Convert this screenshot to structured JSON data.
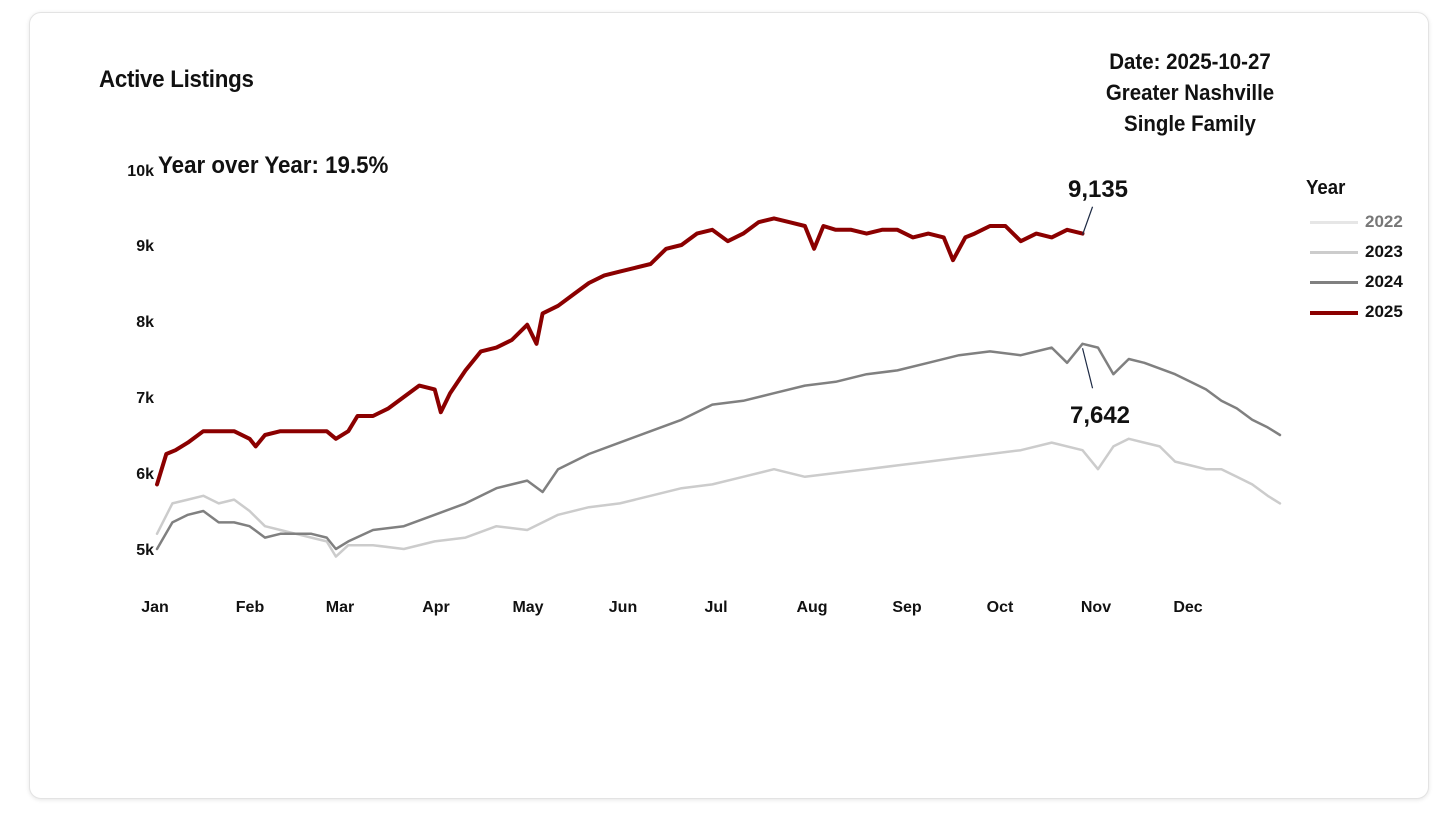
{
  "header": {
    "title": "Active Listings",
    "date_line": "Date: 2025-10-27",
    "region": "Greater Nashville",
    "property_type": "Single Family",
    "yoy": "Year over Year: 19.5%"
  },
  "legend": {
    "title": "Year",
    "items": [
      {
        "label": "2022",
        "color": "#e6e6e6",
        "label_color": "#777777"
      },
      {
        "label": "2023",
        "color": "#cccccc",
        "label_color": "#111111"
      },
      {
        "label": "2024",
        "color": "#808080",
        "label_color": "#111111"
      },
      {
        "label": "2025",
        "color": "#8b0000",
        "label_color": "#111111"
      }
    ]
  },
  "chart_data": {
    "type": "line",
    "title": "Active Listings",
    "x_axis": {
      "months": [
        "Jan",
        "Feb",
        "Mar",
        "Apr",
        "May",
        "Jun",
        "Jul",
        "Aug",
        "Sep",
        "Oct",
        "Nov",
        "Dec"
      ]
    },
    "y_axis": {
      "ticks": [
        5000,
        6000,
        7000,
        8000,
        9000,
        10000
      ],
      "tick_labels": [
        "5k",
        "6k",
        "7k",
        "8k",
        "9k",
        "10k"
      ],
      "range": [
        5000,
        10000
      ]
    },
    "series": [
      {
        "name": "2022",
        "color": "#e6e6e6",
        "days": [
          0,
          364
        ],
        "values": []
      },
      {
        "name": "2023",
        "color": "#cccccc",
        "days": [
          0,
          5,
          10,
          15,
          20,
          25,
          30,
          35,
          40,
          45,
          50,
          55,
          58,
          62,
          70,
          80,
          90,
          100,
          110,
          120,
          130,
          140,
          150,
          160,
          170,
          180,
          190,
          200,
          210,
          220,
          230,
          240,
          250,
          260,
          270,
          280,
          290,
          300,
          305,
          310,
          315,
          320,
          325,
          330,
          335,
          340,
          345,
          350,
          355,
          360,
          364
        ],
        "values": [
          5200,
          5600,
          5650,
          5700,
          5600,
          5650,
          5500,
          5300,
          5250,
          5200,
          5150,
          5100,
          4900,
          5050,
          5050,
          5000,
          5100,
          5150,
          5300,
          5250,
          5450,
          5550,
          5600,
          5700,
          5800,
          5850,
          5950,
          6050,
          5950,
          6000,
          6050,
          6100,
          6150,
          6200,
          6250,
          6300,
          6400,
          6300,
          6050,
          6350,
          6450,
          6400,
          6350,
          6150,
          6100,
          6050,
          6050,
          5950,
          5850,
          5700,
          5600
        ]
      },
      {
        "name": "2024",
        "color": "#808080",
        "days": [
          0,
          5,
          10,
          15,
          20,
          25,
          30,
          35,
          40,
          45,
          50,
          55,
          58,
          62,
          70,
          80,
          90,
          100,
          110,
          120,
          125,
          130,
          140,
          150,
          160,
          170,
          180,
          190,
          200,
          210,
          220,
          230,
          240,
          250,
          260,
          270,
          280,
          290,
          295,
          300,
          305,
          310,
          315,
          320,
          330,
          340,
          345,
          350,
          355,
          360,
          364
        ],
        "values": [
          5000,
          5350,
          5450,
          5500,
          5350,
          5350,
          5300,
          5150,
          5200,
          5200,
          5200,
          5150,
          5000,
          5100,
          5250,
          5300,
          5450,
          5600,
          5800,
          5900,
          5750,
          6050,
          6250,
          6400,
          6550,
          6700,
          6900,
          6950,
          7050,
          7150,
          7200,
          7300,
          7350,
          7450,
          7550,
          7600,
          7550,
          7650,
          7450,
          7700,
          7650,
          7300,
          7500,
          7450,
          7300,
          7100,
          6950,
          6850,
          6700,
          6600,
          6500
        ]
      },
      {
        "name": "2025",
        "color": "#8b0000",
        "days": [
          0,
          3,
          6,
          10,
          15,
          20,
          25,
          30,
          32,
          35,
          40,
          45,
          50,
          55,
          58,
          62,
          65,
          70,
          75,
          80,
          85,
          90,
          92,
          95,
          100,
          105,
          110,
          115,
          120,
          123,
          125,
          130,
          135,
          140,
          145,
          150,
          155,
          160,
          165,
          170,
          175,
          180,
          185,
          190,
          195,
          200,
          205,
          210,
          213,
          216,
          220,
          225,
          230,
          235,
          240,
          245,
          250,
          255,
          258,
          262,
          265,
          270,
          275,
          280,
          285,
          290,
          295,
          300
        ],
        "values": [
          5850,
          6250,
          6300,
          6400,
          6550,
          6550,
          6550,
          6450,
          6350,
          6500,
          6550,
          6550,
          6550,
          6550,
          6450,
          6550,
          6750,
          6750,
          6850,
          7000,
          7150,
          7100,
          6800,
          7050,
          7350,
          7600,
          7650,
          7750,
          7950,
          7700,
          8100,
          8200,
          8350,
          8500,
          8600,
          8650,
          8700,
          8750,
          8950,
          9000,
          9150,
          9200,
          9050,
          9150,
          9300,
          9350,
          9300,
          9250,
          8950,
          9250,
          9200,
          9200,
          9150,
          9200,
          9200,
          9100,
          9150,
          9100,
          8800,
          9100,
          9150,
          9250,
          9250,
          9050,
          9150,
          9100,
          9200,
          9150
        ]
      }
    ],
    "annotations": [
      {
        "series": "2025",
        "day": 300,
        "value": 9135,
        "label": "9,135"
      },
      {
        "series": "2024",
        "day": 300,
        "value": 7642,
        "label": "7,642"
      }
    ]
  }
}
